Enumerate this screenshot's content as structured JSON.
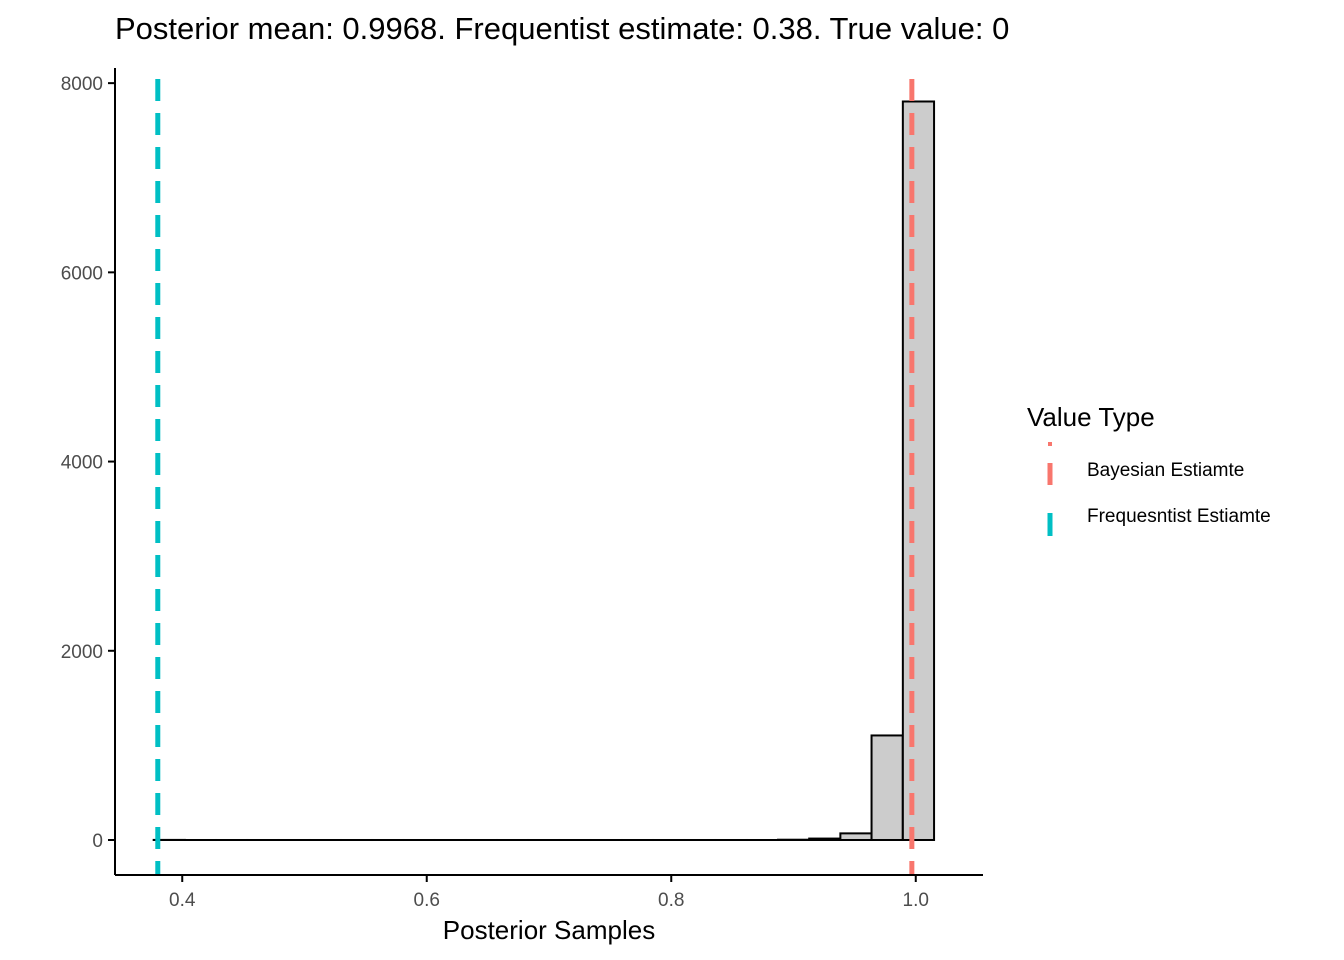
{
  "chart_data": {
    "type": "bar",
    "title": "Posterior mean: 0.9968. Frequentist estimate: 0.38. True value: 0",
    "xlabel": "Posterior Samples",
    "ylabel": "",
    "xlim": [
      0.345,
      1.055
    ],
    "ylim": [
      -370,
      8160
    ],
    "x_ticks": [
      0.4,
      0.6,
      0.8,
      1.0
    ],
    "x_tick_labels": [
      "0.4",
      "0.6",
      "0.8",
      "1.0"
    ],
    "y_ticks": [
      0,
      2000,
      4000,
      6000,
      8000
    ],
    "y_tick_labels": [
      "0",
      "2000",
      "4000",
      "6000",
      "8000"
    ],
    "bin_width": 0.02553,
    "bin_centers": [
      0.3894,
      0.4149,
      0.4405,
      0.466,
      0.4915,
      0.5171,
      0.5426,
      0.5681,
      0.5937,
      0.6192,
      0.6447,
      0.6703,
      0.6958,
      0.7213,
      0.7469,
      0.7724,
      0.7979,
      0.8235,
      0.849,
      0.8745,
      0.9001,
      0.9256,
      0.9511,
      0.9766,
      1.0022
    ],
    "values": [
      1,
      0,
      0,
      0,
      0,
      0,
      0,
      0,
      0,
      0,
      0,
      0,
      0,
      0,
      0,
      0,
      0,
      0,
      0,
      0,
      3,
      15,
      70,
      1105,
      7806
    ],
    "bar_fill": "#cccccc",
    "bar_outline": "#000000",
    "grid": false,
    "legend_position": "right",
    "vlines": [
      {
        "name": "Bayesian Estiamte",
        "x": 0.9968,
        "color": "#F8766D",
        "linetype": "dashed"
      },
      {
        "name": "Frequesntist Estiamte",
        "x": 0.38,
        "color": "#00BFC4",
        "linetype": "dashed"
      }
    ]
  },
  "legend": {
    "title": "Value Type",
    "items": [
      {
        "label": "Bayesian Estiamte",
        "color": "#F8766D"
      },
      {
        "label": "Frequesntist Estiamte",
        "color": "#00BFC4"
      }
    ]
  }
}
